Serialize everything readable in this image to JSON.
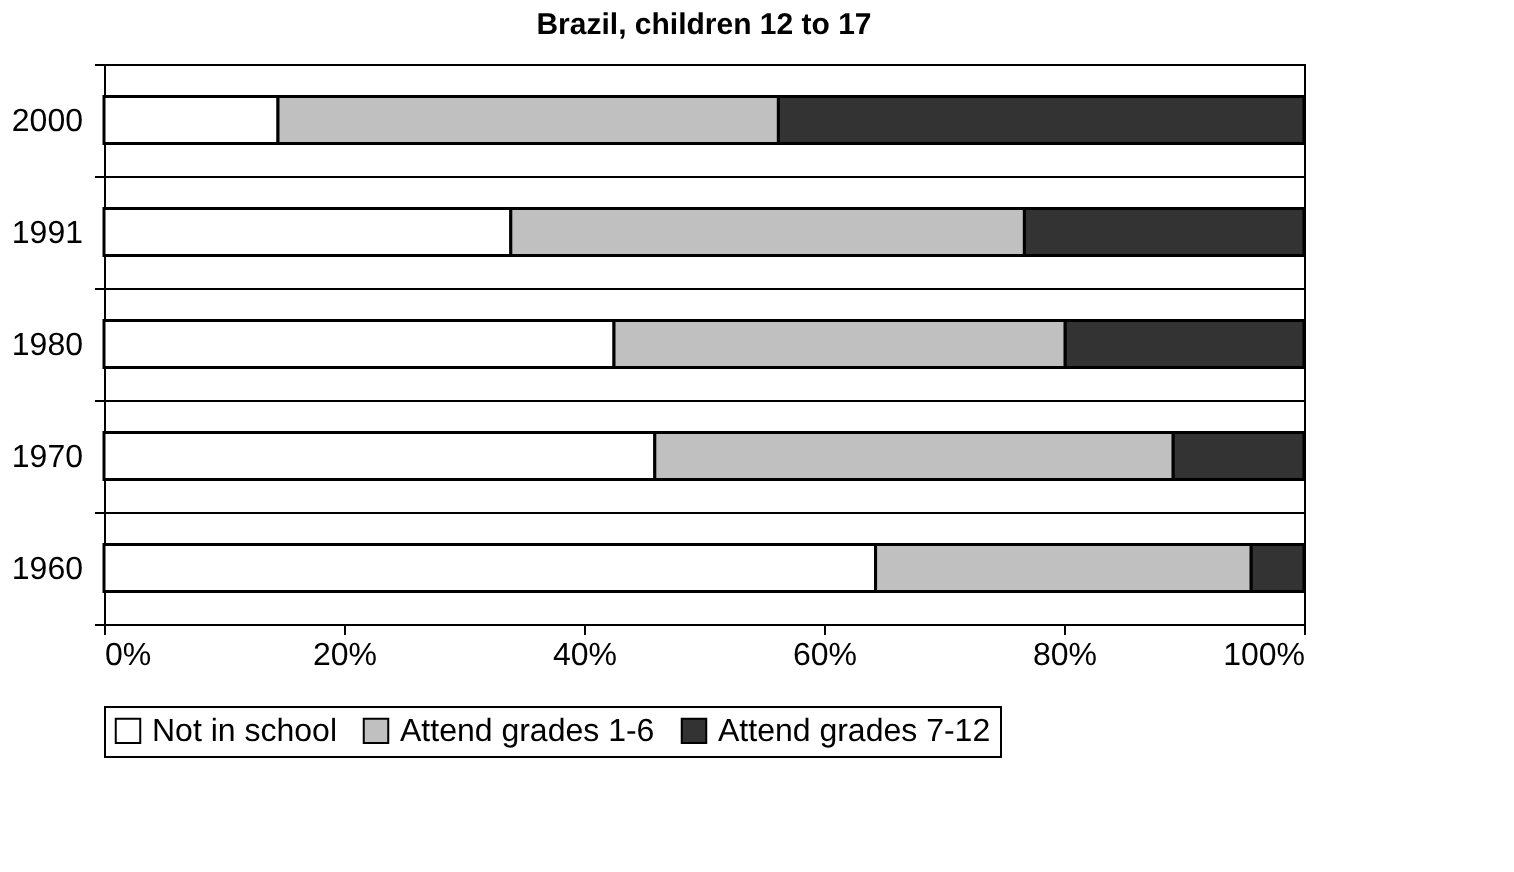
{
  "chart_data": {
    "type": "bar",
    "orientation": "horizontal",
    "stacked": true,
    "title": "Brazil, children 12 to 17",
    "categories": [
      "2000",
      "1991",
      "1980",
      "1970",
      "1960"
    ],
    "series": [
      {
        "name": "Not in school",
        "color": "#ffffff",
        "values": [
          14.5,
          33.9,
          42.5,
          45.9,
          64.3
        ]
      },
      {
        "name": "Attend grades 1-6",
        "color": "#c0c0c0",
        "values": [
          41.7,
          42.8,
          37.6,
          43.2,
          31.3
        ]
      },
      {
        "name": "Attend grades 7-12",
        "color": "#333333",
        "values": [
          43.8,
          23.3,
          19.9,
          10.9,
          4.4
        ]
      }
    ],
    "xlim": [
      0,
      100
    ],
    "xticks": [
      {
        "value": 0,
        "label": "0%"
      },
      {
        "value": 20,
        "label": "20%"
      },
      {
        "value": 40,
        "label": "40%"
      },
      {
        "value": 60,
        "label": "60%"
      },
      {
        "value": 80,
        "label": "80%"
      },
      {
        "value": 100,
        "label": "100%"
      }
    ],
    "grid": "y",
    "legend": "bottom"
  }
}
